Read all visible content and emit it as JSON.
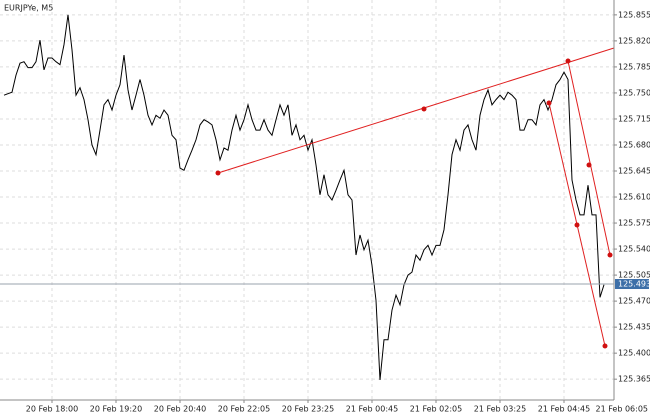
{
  "chart_data": {
    "type": "line",
    "title": "EURJPYe, M5",
    "values": [
      125.747,
      125.749,
      125.751,
      125.774,
      125.79,
      125.792,
      125.784,
      125.784,
      125.792,
      125.821,
      125.781,
      125.797,
      125.797,
      125.792,
      125.788,
      125.815,
      125.855,
      125.808,
      125.747,
      125.757,
      125.741,
      125.714,
      125.68,
      125.667,
      125.7,
      125.734,
      125.741,
      125.727,
      125.747,
      125.761,
      125.801,
      125.754,
      125.727,
      125.747,
      125.768,
      125.747,
      125.72,
      125.707,
      125.72,
      125.716,
      125.727,
      125.72,
      125.693,
      125.687,
      125.649,
      125.646,
      125.66,
      125.673,
      125.687,
      125.707,
      125.714,
      125.711,
      125.707,
      125.687,
      125.66,
      125.676,
      125.673,
      125.7,
      125.72,
      125.7,
      125.714,
      125.734,
      125.714,
      125.7,
      125.7,
      125.714,
      125.7,
      125.693,
      125.714,
      125.734,
      125.72,
      125.734,
      125.693,
      125.707,
      125.687,
      125.693,
      125.673,
      125.687,
      125.653,
      125.613,
      125.64,
      125.613,
      125.606,
      125.619,
      125.633,
      125.646,
      125.613,
      125.606,
      125.532,
      125.559,
      125.539,
      125.552,
      125.518,
      125.471,
      125.364,
      125.418,
      125.418,
      125.458,
      125.478,
      125.465,
      125.492,
      125.505,
      125.509,
      125.532,
      125.525,
      125.539,
      125.545,
      125.532,
      125.545,
      125.545,
      125.566,
      125.613,
      125.667,
      125.687,
      125.673,
      125.7,
      125.707,
      125.687,
      125.673,
      125.72,
      125.741,
      125.754,
      125.734,
      125.741,
      125.747,
      125.741,
      125.751,
      125.747,
      125.741,
      125.7,
      125.7,
      125.714,
      125.714,
      125.707,
      125.734,
      125.741,
      125.727,
      125.741,
      125.761,
      125.768,
      125.778,
      125.768,
      125.633,
      125.606,
      125.586,
      125.586,
      125.626,
      125.586,
      125.586,
      125.475,
      125.492
    ],
    "color": "#000000",
    "xlim": [
      -1,
      152.5
    ],
    "xticks": [
      {
        "value": 12,
        "label": "20 Feb 18:00"
      },
      {
        "value": 28,
        "label": "20 Feb 19:20"
      },
      {
        "value": 44,
        "label": "20 Feb 20:40"
      },
      {
        "value": 60,
        "label": "20 Feb 22:05"
      },
      {
        "value": 76,
        "label": "20 Feb 23:25"
      },
      {
        "value": 92,
        "label": "21 Feb 00:45"
      },
      {
        "value": 108,
        "label": "21 Feb 02:05"
      },
      {
        "value": 124,
        "label": "21 Feb 03:25"
      },
      {
        "value": 140,
        "label": "21 Feb 04:45"
      },
      {
        "value": 156,
        "label": "21 Feb 06:05"
      }
    ],
    "ylim": [
      125.337,
      125.875
    ],
    "yticks": [
      125.855,
      {
        "value": 125.82,
        "label": "125.820"
      },
      125.785,
      {
        "value": 125.75,
        "label": "125.750"
      },
      125.715,
      {
        "value": 125.68,
        "label": "125.680"
      },
      125.645,
      {
        "value": 125.61,
        "label": "125.610"
      },
      125.575,
      {
        "value": 125.54,
        "label": "125.540"
      },
      125.505,
      {
        "value": 125.47,
        "label": "125.470"
      },
      125.435,
      {
        "value": 125.4,
        "label": "125.400"
      },
      125.365
    ],
    "current_price": 125.493,
    "grid": true
  }
}
